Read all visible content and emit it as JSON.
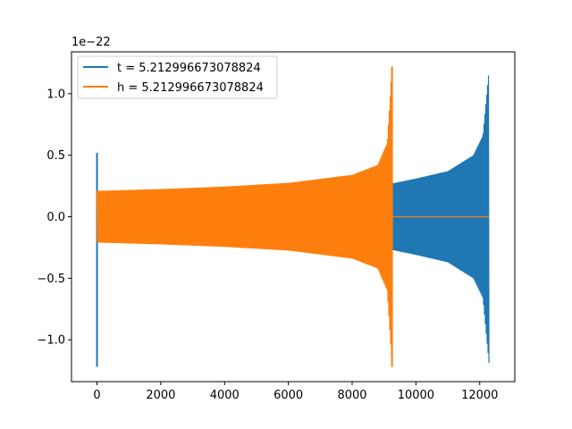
{
  "chart_data": {
    "type": "line",
    "title": "",
    "xlabel": "",
    "ylabel": "",
    "y_scale_label": "1e−22",
    "xlim": [
      -800,
      13100
    ],
    "ylim": [
      -1.34,
      1.34
    ],
    "x_ticks": [
      0,
      2000,
      4000,
      6000,
      8000,
      10000,
      12000
    ],
    "x_tick_labels": [
      "0",
      "2000",
      "4000",
      "6000",
      "8000",
      "10000",
      "12000"
    ],
    "y_ticks": [
      1.0,
      0.5,
      0.0,
      -0.5,
      -1.0
    ],
    "y_tick_labels": [
      "1.0",
      "0.5",
      "0.0",
      "−0.5",
      "−1.0"
    ],
    "grid": false,
    "legend_position": "upper-left",
    "series": [
      {
        "name": "t = 5.212996673078824",
        "color": "#1f77b4",
        "description": "oscillating chirp signal",
        "x_start": 0,
        "x_end": 12300,
        "initial_spike": {
          "x": 0,
          "max": 0.52,
          "min": -1.22
        },
        "envelope": [
          {
            "x": 0,
            "amp": 0.2
          },
          {
            "x": 9250,
            "amp": 0.27
          },
          {
            "x": 10000,
            "amp": 0.31
          },
          {
            "x": 11000,
            "amp": 0.37
          },
          {
            "x": 11800,
            "amp": 0.5
          },
          {
            "x": 12100,
            "amp": 0.66
          },
          {
            "x": 12300,
            "amp": 1.22
          }
        ]
      },
      {
        "name": "h = 5.212996673078824",
        "color": "#ff7f0e",
        "description": "oscillating chirp signal, zero after merger",
        "x_start": 0,
        "x_end": 12300,
        "end_of_oscillation": 9250,
        "envelope": [
          {
            "x": 0,
            "amp": 0.21
          },
          {
            "x": 2000,
            "amp": 0.225
          },
          {
            "x": 4000,
            "amp": 0.245
          },
          {
            "x": 6000,
            "amp": 0.275
          },
          {
            "x": 8000,
            "amp": 0.34
          },
          {
            "x": 8800,
            "amp": 0.42
          },
          {
            "x": 9100,
            "amp": 0.6
          },
          {
            "x": 9250,
            "amp": 1.22
          }
        ]
      }
    ]
  }
}
